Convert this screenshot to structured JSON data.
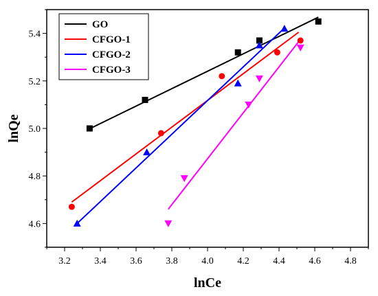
{
  "chart_data": {
    "type": "scatter",
    "title": "",
    "xlabel": "lnCe",
    "ylabel": "lnQe",
    "xlim": [
      3.1,
      4.9
    ],
    "ylim": [
      4.5,
      5.5
    ],
    "xticks": [
      "3.2",
      "3.4",
      "3.6",
      "3.8",
      "4.0",
      "4.2",
      "4.4",
      "4.6",
      "4.8"
    ],
    "yticks": [
      "4.6",
      "4.8",
      "5.0",
      "5.2",
      "5.4"
    ],
    "grid": false,
    "legend_position": "top-left",
    "series": [
      {
        "name": "GO",
        "color": "#000000",
        "marker": "square",
        "x": [
          3.34,
          3.65,
          4.17,
          4.29,
          4.62
        ],
        "y": [
          5.0,
          5.12,
          5.32,
          5.37,
          5.45
        ],
        "fit": [
          [
            3.33,
            4.995
          ],
          [
            4.62,
            5.468
          ]
        ]
      },
      {
        "name": "CFGO-1",
        "color": "#ff0000",
        "marker": "circle",
        "x": [
          3.24,
          3.74,
          4.08,
          4.39,
          4.52
        ],
        "y": [
          4.67,
          4.98,
          5.22,
          5.32,
          5.37
        ],
        "fit": [
          [
            3.24,
            4.69
          ],
          [
            4.51,
            5.405
          ]
        ]
      },
      {
        "name": "CFGO-2",
        "color": "#0000ff",
        "marker": "triangle-up",
        "x": [
          3.27,
          3.66,
          4.17,
          4.29,
          4.43
        ],
        "y": [
          4.6,
          4.9,
          5.19,
          5.35,
          5.42
        ],
        "fit": [
          [
            3.27,
            4.6
          ],
          [
            4.42,
            5.415
          ]
        ]
      },
      {
        "name": "CFGO-3",
        "color": "#ff00ff",
        "marker": "triangle-down",
        "x": [
          3.78,
          3.87,
          4.23,
          4.29,
          4.52
        ],
        "y": [
          4.6,
          4.79,
          5.1,
          5.21,
          5.34
        ],
        "fit": [
          [
            3.78,
            4.66
          ],
          [
            4.52,
            5.375
          ]
        ]
      }
    ]
  }
}
